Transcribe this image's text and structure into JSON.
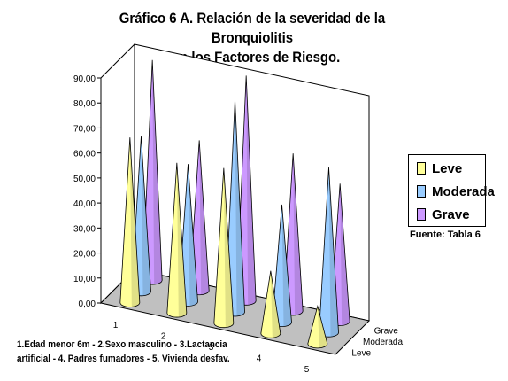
{
  "chart_data": {
    "type": "3d-column-cone",
    "title_line1": "Gráfico 6 A. Relación de la severidad de la Bronquiolitis",
    "title_line2": "con los Factores de Riesgo.",
    "y_ticks": [
      "0,00",
      "10,00",
      "20,00",
      "30,00",
      "40,00",
      "50,00",
      "60,00",
      "70,00",
      "80,00",
      "90,00"
    ],
    "ylim": [
      0,
      90
    ],
    "categories": [
      "1",
      "2",
      "3",
      "4",
      "5"
    ],
    "series": [
      {
        "name": "Leve",
        "values": [
          66,
          60,
          62,
          25,
          15
        ],
        "color": "#FFFF99"
      },
      {
        "name": "Moderada",
        "values": [
          62,
          55,
          85,
          47,
          66
        ],
        "color": "#99CCFF"
      },
      {
        "name": "Grave",
        "values": [
          88,
          60,
          90,
          63,
          55
        ],
        "color": "#CC99FF"
      }
    ],
    "depth_labels": [
      "Leve",
      "Moderada",
      "Grave"
    ],
    "legend_position": "right",
    "grid": false
  },
  "source_note": "Fuente: Tabla 6",
  "footnote": {
    "line1": "1.Edad menor 6m - 2.Sexo masculino - 3.Lactancia",
    "line2": "artificial - 4. Padres fumadores - 5. Vivienda desfav."
  },
  "colors": {
    "wall": "#ffffff",
    "floor": "#c0c0c0",
    "outline": "#000000"
  }
}
